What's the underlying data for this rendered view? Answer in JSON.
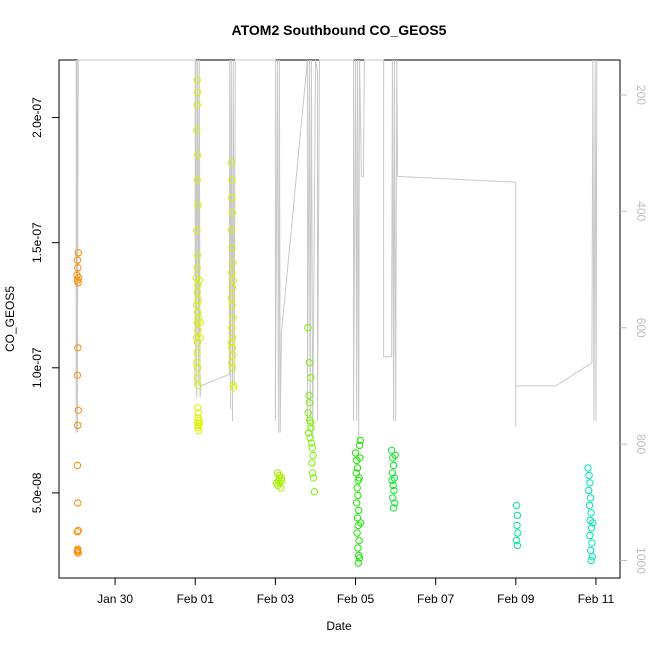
{
  "chart_data": {
    "type": "scatter",
    "title": "ATOM2 Southbound CO_GEOS5",
    "xlabel": "Date",
    "ylabel": "CO_GEOS5",
    "x_tick_labels": [
      "Jan 30",
      "Feb 01",
      "Feb 03",
      "Feb 05",
      "Feb 07",
      "Feb 09",
      "Feb 11"
    ],
    "x_ticks_day": [
      30,
      32,
      34,
      36,
      38,
      40,
      42
    ],
    "xlim_day": [
      28.6,
      42.6
    ],
    "y_tick_labels": [
      "5.0e-08",
      "1.0e-07",
      "1.5e-07",
      "2.0e-07"
    ],
    "y_ticks": [
      5e-08,
      1e-07,
      1.5e-07,
      2e-07
    ],
    "ylim": [
      1.6e-08,
      2.23e-07
    ],
    "y2_tick_labels": [
      "200",
      "400",
      "600",
      "800",
      "1000"
    ],
    "y2_ticks": [
      200,
      400,
      600,
      800,
      1000
    ],
    "y2lim": [
      1030,
      140
    ],
    "y2_label_color": "#bdbdbd",
    "pressure_line_color": "#c8c8c8",
    "series": [
      {
        "color": "#ff8c00",
        "points": [
          [
            29.08,
            1.46e-07
          ],
          [
            29.06,
            1.43e-07
          ],
          [
            29.07,
            1.4e-07
          ],
          [
            29.05,
            1.37e-07
          ],
          [
            29.09,
            1.36e-07
          ],
          [
            29.06,
            1.35e-07
          ],
          [
            29.08,
            1.34e-07
          ],
          [
            29.07,
            1.08e-07
          ],
          [
            29.06,
            9.7e-08
          ],
          [
            29.08,
            8.3e-08
          ],
          [
            29.07,
            7.7e-08
          ],
          [
            29.06,
            6.1e-08
          ],
          [
            29.07,
            4.6e-08
          ],
          [
            29.08,
            3.5e-08
          ],
          [
            29.06,
            3.45e-08
          ],
          [
            29.07,
            2.75e-08
          ],
          [
            29.06,
            2.65e-08
          ],
          [
            29.08,
            2.6e-08
          ],
          [
            29.07,
            2.7e-08
          ]
        ]
      },
      {
        "color": "#dcf000",
        "points": [
          [
            32.05,
            2.15e-07
          ],
          [
            32.06,
            2.1e-07
          ],
          [
            32.05,
            2.05e-07
          ],
          [
            32.04,
            1.95e-07
          ],
          [
            32.06,
            1.85e-07
          ],
          [
            32.05,
            1.75e-07
          ],
          [
            32.07,
            1.65e-07
          ],
          [
            32.04,
            1.55e-07
          ],
          [
            32.06,
            1.45e-07
          ],
          [
            32.05,
            1.4e-07
          ],
          [
            32.03,
            1.36e-07
          ],
          [
            32.07,
            1.33e-07
          ],
          [
            32.05,
            1.3e-07
          ],
          [
            32.08,
            1.27e-07
          ],
          [
            32.04,
            1.25e-07
          ],
          [
            32.06,
            1.22e-07
          ],
          [
            32.09,
            1.2e-07
          ],
          [
            32.05,
            1.18e-07
          ],
          [
            32.07,
            1.15e-07
          ],
          [
            32.04,
            1.12e-07
          ],
          [
            32.06,
            1.1e-07
          ],
          [
            32.05,
            1.06e-07
          ],
          [
            32.04,
            1.02e-07
          ],
          [
            32.06,
            1e-07
          ],
          [
            32.05,
            9.6e-08
          ],
          [
            32.07,
            9.3e-08
          ],
          [
            32.06,
            8.4e-08
          ],
          [
            32.08,
            8.2e-08
          ],
          [
            32.07,
            8e-08
          ],
          [
            32.09,
            7.9e-08
          ],
          [
            32.06,
            7.8e-08
          ],
          [
            32.08,
            7.7e-08
          ],
          [
            32.07,
            7.6e-08
          ],
          [
            32.09,
            7.5e-08
          ],
          [
            32.11,
            7.8e-08
          ],
          [
            32.12,
            1.12e-07
          ],
          [
            32.13,
            1.18e-07
          ],
          [
            32.1,
            1.35e-07
          ],
          [
            32.9,
            1.82e-07
          ],
          [
            32.92,
            1.75e-07
          ],
          [
            32.91,
            1.68e-07
          ],
          [
            32.93,
            1.62e-07
          ],
          [
            32.9,
            1.55e-07
          ],
          [
            32.92,
            1.48e-07
          ],
          [
            32.94,
            1.42e-07
          ],
          [
            32.91,
            1.38e-07
          ],
          [
            32.95,
            1.35e-07
          ],
          [
            32.93,
            1.32e-07
          ],
          [
            32.9,
            1.28e-07
          ],
          [
            32.92,
            1.25e-07
          ],
          [
            32.94,
            1.2e-07
          ],
          [
            32.91,
            1.16e-07
          ],
          [
            32.93,
            1.12e-07
          ],
          [
            32.9,
            1.1e-07
          ],
          [
            32.92,
            1.08e-07
          ],
          [
            32.94,
            1.05e-07
          ],
          [
            32.91,
            1.02e-07
          ],
          [
            32.95,
            9.3e-08
          ],
          [
            32.96,
            9.2e-08
          ],
          [
            32.93,
            1e-07
          ]
        ]
      },
      {
        "color": "#a8f000",
        "points": [
          [
            34.05,
            5.8e-08
          ],
          [
            34.1,
            5.7e-08
          ],
          [
            34.15,
            5.6e-08
          ],
          [
            34.08,
            5.5e-08
          ],
          [
            34.12,
            5.4e-08
          ],
          [
            34.06,
            5.3e-08
          ],
          [
            34.14,
            5.2e-08
          ],
          [
            34.09,
            5.6e-08
          ],
          [
            34.16,
            5.5e-08
          ],
          [
            34.03,
            5.4e-08
          ]
        ]
      },
      {
        "color": "#7ef000",
        "points": [
          [
            34.81,
            1.16e-07
          ],
          [
            34.85,
            1.02e-07
          ],
          [
            34.88,
            9.6e-08
          ],
          [
            34.84,
            8.9e-08
          ],
          [
            34.82,
            8.2e-08
          ],
          [
            34.86,
            7.9e-08
          ],
          [
            34.89,
            7.6e-08
          ],
          [
            34.83,
            7.4e-08
          ],
          [
            34.87,
            7.2e-08
          ],
          [
            34.9,
            7e-08
          ],
          [
            34.92,
            6.8e-08
          ],
          [
            34.94,
            6.5e-08
          ],
          [
            34.91,
            6.2e-08
          ],
          [
            34.93,
            5.8e-08
          ],
          [
            34.95,
            5.6e-08
          ],
          [
            34.97,
            5.05e-08
          ],
          [
            34.85,
            8.6e-08
          ],
          [
            34.88,
            7.8e-08
          ]
        ]
      },
      {
        "color": "#1ee600",
        "points": [
          [
            36.0,
            6.6e-08
          ],
          [
            36.03,
            6.3e-08
          ],
          [
            36.05,
            6e-08
          ],
          [
            36.02,
            5.8e-08
          ],
          [
            36.07,
            5.5e-08
          ],
          [
            36.04,
            5.2e-08
          ],
          [
            36.06,
            4.9e-08
          ],
          [
            36.03,
            4.6e-08
          ],
          [
            36.08,
            4.3e-08
          ],
          [
            36.05,
            4e-08
          ],
          [
            36.07,
            3.7e-08
          ],
          [
            36.04,
            3.4e-08
          ],
          [
            36.09,
            3.1e-08
          ],
          [
            36.06,
            2.8e-08
          ],
          [
            36.08,
            2.5e-08
          ],
          [
            36.07,
            2.2e-08
          ],
          [
            36.1,
            6.9e-08
          ],
          [
            36.12,
            7.1e-08
          ],
          [
            36.11,
            6.4e-08
          ],
          [
            36.09,
            5.6e-08
          ],
          [
            36.13,
            3.8e-08
          ],
          [
            36.1,
            2.4e-08
          ]
        ]
      },
      {
        "color": "#14e632",
        "points": [
          [
            36.9,
            6.7e-08
          ],
          [
            36.93,
            6.4e-08
          ],
          [
            36.95,
            6.1e-08
          ],
          [
            36.92,
            5.8e-08
          ],
          [
            36.97,
            5.6e-08
          ],
          [
            36.94,
            5.3e-08
          ],
          [
            36.96,
            5.1e-08
          ],
          [
            36.93,
            4.8e-08
          ],
          [
            36.98,
            4.6e-08
          ],
          [
            36.95,
            4.4e-08
          ],
          [
            36.99,
            6.5e-08
          ],
          [
            36.91,
            5.5e-08
          ]
        ]
      },
      {
        "color": "#00e6a0",
        "points": [
          [
            40.02,
            4.5e-08
          ],
          [
            40.04,
            4.1e-08
          ],
          [
            40.03,
            3.7e-08
          ],
          [
            40.05,
            3.4e-08
          ],
          [
            40.02,
            3.1e-08
          ],
          [
            40.04,
            2.9e-08
          ]
        ]
      },
      {
        "color": "#00e6b4",
        "points": [
          [
            41.8,
            6e-08
          ],
          [
            41.83,
            5.7e-08
          ],
          [
            41.85,
            5.4e-08
          ],
          [
            41.82,
            5.1e-08
          ],
          [
            41.87,
            4.8e-08
          ],
          [
            41.84,
            4.5e-08
          ],
          [
            41.88,
            4.2e-08
          ],
          [
            41.86,
            3.9e-08
          ],
          [
            41.89,
            3.6e-08
          ],
          [
            41.85,
            3.3e-08
          ],
          [
            41.9,
            3e-08
          ],
          [
            41.87,
            2.7e-08
          ],
          [
            41.91,
            2.45e-08
          ],
          [
            41.88,
            2.3e-08
          ],
          [
            41.92,
            3.8e-08
          ]
        ]
      }
    ],
    "pressure_path": [
      [
        29.03,
        140
      ],
      [
        29.03,
        780
      ],
      [
        29.05,
        140
      ],
      [
        29.06,
        780
      ],
      [
        29.08,
        140
      ],
      [
        32.0,
        140
      ],
      [
        32.0,
        700
      ],
      [
        32.02,
        140
      ],
      [
        32.04,
        720
      ],
      [
        32.06,
        140
      ],
      [
        32.09,
        700
      ],
      [
        32.1,
        140
      ],
      [
        32.12,
        720
      ],
      [
        32.14,
        700
      ],
      [
        32.85,
        680
      ],
      [
        32.86,
        140
      ],
      [
        32.88,
        740
      ],
      [
        32.9,
        140
      ],
      [
        32.93,
        760
      ],
      [
        32.95,
        140
      ],
      [
        32.97,
        700
      ],
      [
        33.0,
        140
      ],
      [
        34.0,
        140
      ],
      [
        34.0,
        760
      ],
      [
        34.05,
        140
      ],
      [
        34.08,
        780
      ],
      [
        34.1,
        140
      ],
      [
        34.12,
        780
      ],
      [
        34.15,
        610
      ],
      [
        34.8,
        140
      ],
      [
        34.8,
        760
      ],
      [
        34.85,
        140
      ],
      [
        34.87,
        760
      ],
      [
        34.9,
        140
      ],
      [
        34.93,
        790
      ],
      [
        35.0,
        140
      ],
      [
        35.0,
        140
      ],
      [
        35.05,
        160
      ],
      [
        35.05,
        760
      ],
      [
        35.1,
        140
      ],
      [
        35.95,
        140
      ],
      [
        35.95,
        760
      ],
      [
        36.0,
        140
      ],
      [
        36.03,
        760
      ],
      [
        36.05,
        140
      ],
      [
        36.08,
        800
      ],
      [
        36.1,
        140
      ],
      [
        36.15,
        340
      ],
      [
        36.2,
        340
      ],
      [
        36.22,
        140
      ],
      [
        36.7,
        140
      ],
      [
        36.7,
        650
      ],
      [
        36.9,
        650
      ],
      [
        36.92,
        140
      ],
      [
        36.95,
        760
      ],
      [
        36.97,
        140
      ],
      [
        37.0,
        760
      ],
      [
        37.03,
        140
      ],
      [
        37.05,
        340
      ],
      [
        40.0,
        350
      ],
      [
        40.0,
        770
      ],
      [
        40.0,
        700
      ],
      [
        40.9,
        700
      ],
      [
        41.0,
        700
      ],
      [
        41.9,
        660
      ],
      [
        41.92,
        140
      ],
      [
        41.95,
        760
      ],
      [
        41.98,
        140
      ],
      [
        42.0,
        760
      ],
      [
        42.02,
        140
      ]
    ]
  }
}
